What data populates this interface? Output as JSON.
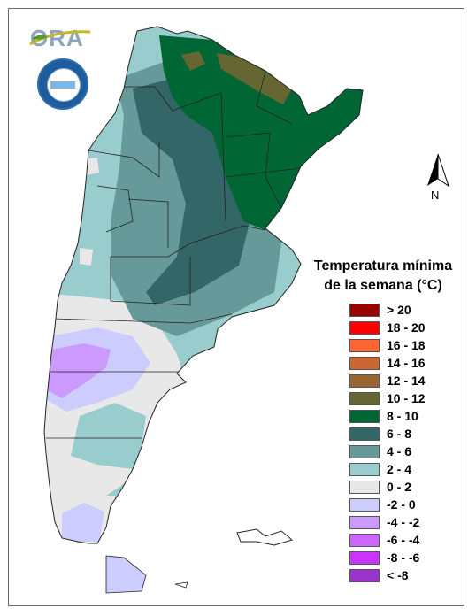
{
  "logo": {
    "text": "ORA",
    "colors": {
      "text": "#8aa6b8",
      "swoosh": "#c8b62a",
      "leaf": "#4f9a3a"
    }
  },
  "seal": {
    "name": "institutional-seal",
    "colors": {
      "ring": "#1e5c9c",
      "band": "#7fb6e6"
    }
  },
  "north_arrow": {
    "label": "N"
  },
  "legend": {
    "title_line1": "Temperatura mínima",
    "title_line2": "de la semana (°C)",
    "items": [
      {
        "label": "> 20",
        "color": "#990000"
      },
      {
        "label": "18 - 20",
        "color": "#ff0000"
      },
      {
        "label": "16 - 18",
        "color": "#ff6633"
      },
      {
        "label": "14 - 16",
        "color": "#cc6633"
      },
      {
        "label": "12 - 14",
        "color": "#996633"
      },
      {
        "label": "10 - 12",
        "color": "#666633"
      },
      {
        "label": "8 - 10",
        "color": "#006633"
      },
      {
        "label": "6 - 8",
        "color": "#336666"
      },
      {
        "label": "4 - 6",
        "color": "#669999"
      },
      {
        "label": "2 - 4",
        "color": "#99cccc"
      },
      {
        "label": "0 - 2",
        "color": "#e8e8e8"
      },
      {
        "label": "-2 - 0",
        "color": "#ccccff"
      },
      {
        "label": "-4 - -2",
        "color": "#cc99ff"
      },
      {
        "label": "-6 - -4",
        "color": "#cc66ff"
      },
      {
        "label": "-8 - -6",
        "color": "#cc33ff"
      },
      {
        "label": "< -8",
        "color": "#9933cc"
      }
    ]
  }
}
